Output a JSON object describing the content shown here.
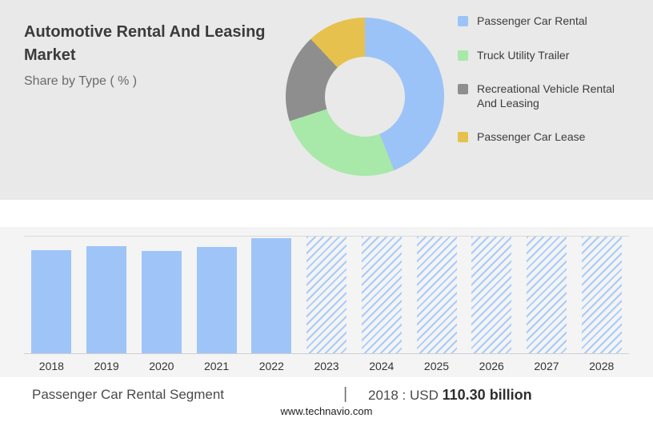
{
  "header": {
    "title": "Automotive Rental And Leasing Market",
    "subtitle": "Share by Type ( % )"
  },
  "chart_data": [
    {
      "type": "pie",
      "donut": true,
      "title": "Automotive Rental And Leasing Market — Share by Type ( % )",
      "labels": [
        "Passenger Car Rental",
        "Truck Utility Trailer",
        "Recreational Vehicle Rental And Leasing",
        "Passenger Car Lease"
      ],
      "values": [
        44,
        26,
        18,
        12
      ],
      "colors": [
        "#9cc3f7",
        "#a8e8a8",
        "#8e8e8e",
        "#e6c14e"
      ],
      "legend_position": "right"
    },
    {
      "type": "bar",
      "categories": [
        "2018",
        "2019",
        "2020",
        "2021",
        "2022",
        "2023",
        "2024",
        "2025",
        "2026",
        "2027",
        "2028"
      ],
      "values": [
        110.3,
        114.3,
        109.2,
        113.5,
        122.8,
        124.5,
        124.5,
        124.5,
        124.5,
        124.5,
        124.5
      ],
      "forecast_from_index": 5,
      "ylim": [
        0,
        124.5
      ],
      "unit": "USD billion",
      "bar_color": "#9fc5f8",
      "forecast_style": "diagonal-hatch",
      "grid": "top and baseline only",
      "xlabel": "",
      "ylabel": ""
    }
  ],
  "caption": {
    "segment": "Passenger Car Rental Segment",
    "separator": "|",
    "stat_prefix": "2018 : USD",
    "stat_value": "110.30 billion"
  },
  "footer": {
    "url": "www.technavio.com"
  }
}
